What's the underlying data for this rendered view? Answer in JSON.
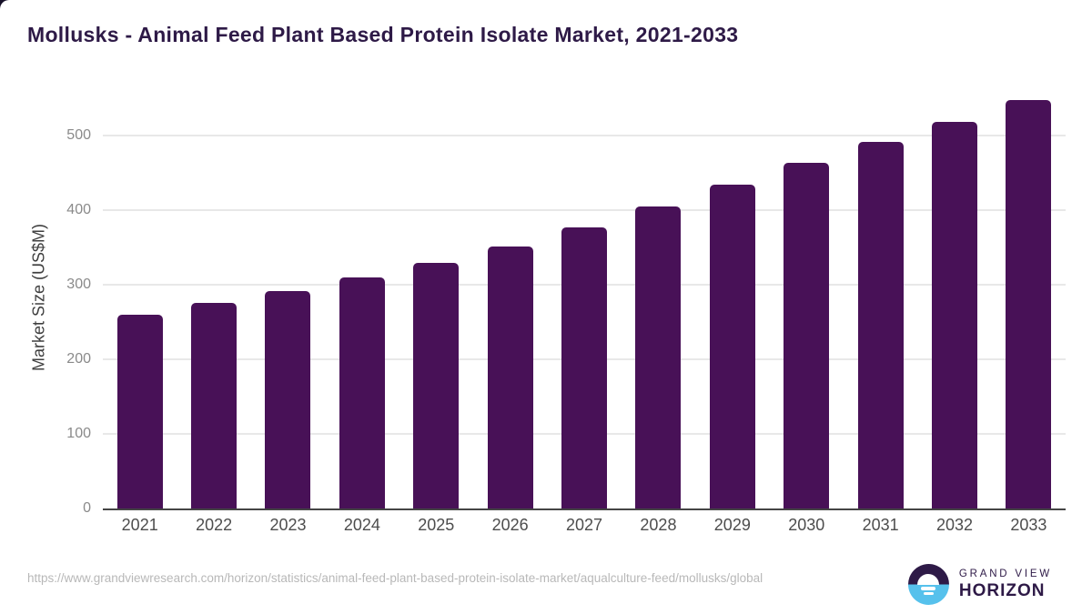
{
  "page": {
    "title": "Mollusks - Animal Feed Plant Based Protein Isolate Market, 2021-2033",
    "source_url": "https://www.grandviewresearch.com/horizon/statistics/animal-feed-plant-based-protein-isolate-market/aqualculture-feed/mollusks/global",
    "brand": {
      "name_top": "GRAND VIEW",
      "name_bottom": "HORIZON",
      "logo_icon": "horizon-sunrise-icon"
    }
  },
  "colors": {
    "bar": "#481157",
    "title_text": "#2E1A47",
    "brand_purple": "#2E1A47",
    "brand_blue": "#56C1EC",
    "grid_line": "#E8E8E8",
    "axis_line": "#454545",
    "y_tick_text": "#8A8A8A",
    "x_tick_text": "#4D4D4D",
    "url_text": "#B8B8B8"
  },
  "chart_data": {
    "type": "bar",
    "title": "Mollusks - Animal Feed Plant Based Protein Isolate Market, 2021-2033",
    "categories": [
      "2021",
      "2022",
      "2023",
      "2024",
      "2025",
      "2026",
      "2027",
      "2028",
      "2029",
      "2030",
      "2031",
      "2032",
      "2033"
    ],
    "values": [
      260,
      275,
      291,
      309,
      329,
      351,
      376,
      405,
      434,
      463,
      491,
      518,
      547
    ],
    "xlabel": "",
    "ylabel": "Market Size (US$M)",
    "yticks": [
      0,
      100,
      200,
      300,
      400,
      500
    ],
    "ylim": [
      0,
      560
    ],
    "grid": true,
    "legend": false,
    "bar_color": "#481157"
  }
}
